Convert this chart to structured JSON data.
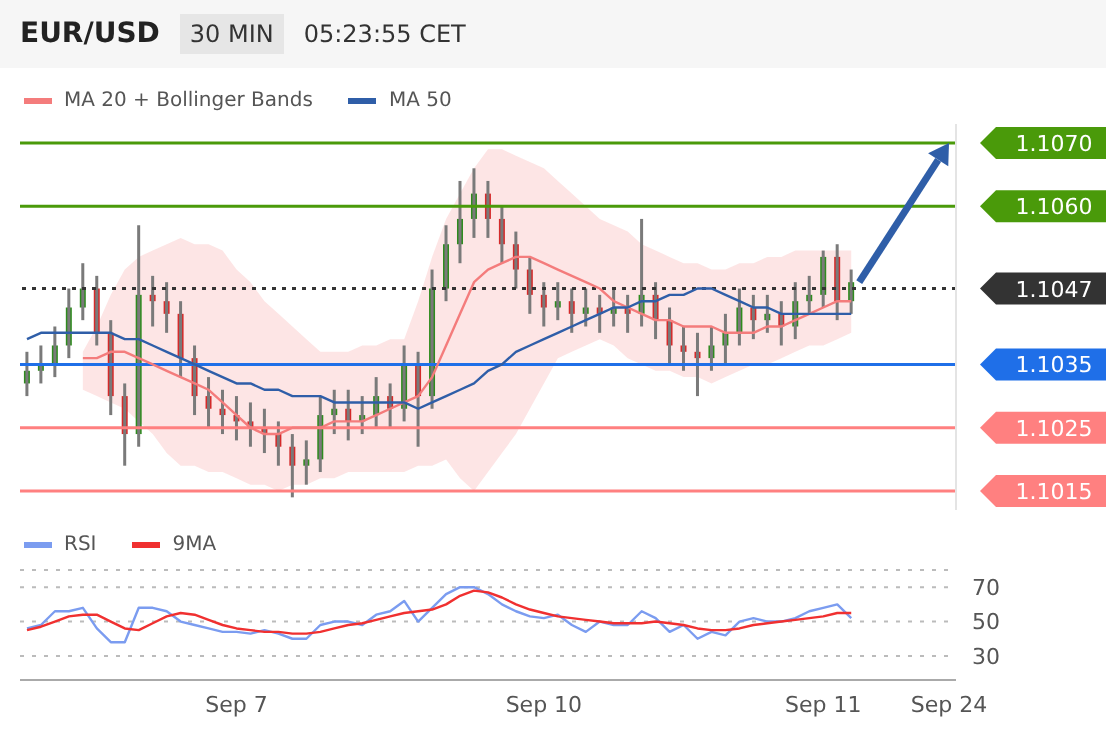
{
  "chart_data": [
    {
      "type": "candlestick",
      "title": "EUR/USD",
      "subtitle": "30 MIN",
      "annotations": [
        "05:23:55 CET"
      ],
      "categories": [
        null,
        null,
        null,
        null,
        null,
        null,
        null,
        null,
        null,
        null,
        null,
        null,
        null,
        null,
        null,
        null,
        null,
        null,
        null,
        null,
        null,
        null,
        null,
        null,
        null,
        null,
        null,
        null,
        null,
        null,
        null,
        null,
        null,
        null,
        null,
        null,
        null,
        null,
        null,
        null,
        null,
        null,
        null,
        null,
        null,
        null,
        null,
        null,
        null,
        null,
        null,
        null,
        null,
        null,
        null,
        null,
        null,
        null,
        null,
        null,
        null,
        null,
        null,
        null,
        null,
        null,
        null
      ],
      "ohlc": [
        [
          1.1032,
          1.1037,
          1.103,
          1.1034
        ],
        [
          1.1034,
          1.1038,
          1.1032,
          1.1035
        ],
        [
          1.1035,
          1.1041,
          1.1033,
          1.1038
        ],
        [
          1.1038,
          1.1047,
          1.1036,
          1.1044
        ],
        [
          1.1044,
          1.1051,
          1.1042,
          1.1047
        ],
        [
          1.1047,
          1.1049,
          1.1038,
          1.104
        ],
        [
          1.104,
          1.1042,
          1.1027,
          1.103
        ],
        [
          1.103,
          1.1032,
          1.1019,
          1.1024
        ],
        [
          1.1024,
          1.1057,
          1.1022,
          1.1046
        ],
        [
          1.1046,
          1.1049,
          1.1041,
          1.1045
        ],
        [
          1.1045,
          1.1048,
          1.104,
          1.1043
        ],
        [
          1.1043,
          1.1045,
          1.1033,
          1.1036
        ],
        [
          1.1036,
          1.1038,
          1.1027,
          1.103
        ],
        [
          1.103,
          1.1033,
          1.1025,
          1.1028
        ],
        [
          1.1028,
          1.1031,
          1.1024,
          1.1027
        ],
        [
          1.1027,
          1.103,
          1.1023,
          1.1026
        ],
        [
          1.1026,
          1.1029,
          1.1022,
          1.1025
        ],
        [
          1.1025,
          1.1028,
          1.1021,
          1.1024
        ],
        [
          1.1024,
          1.1026,
          1.1019,
          1.1022
        ],
        [
          1.1022,
          1.1024,
          1.1014,
          1.1019
        ],
        [
          1.1019,
          1.1023,
          1.1016,
          1.102
        ],
        [
          1.102,
          1.103,
          1.1018,
          1.1027
        ],
        [
          1.1027,
          1.1031,
          1.1024,
          1.1028
        ],
        [
          1.1028,
          1.1031,
          1.1023,
          1.1026
        ],
        [
          1.1026,
          1.103,
          1.1024,
          1.1027
        ],
        [
          1.1027,
          1.1033,
          1.1025,
          1.103
        ],
        [
          1.103,
          1.1032,
          1.1025,
          1.1028
        ],
        [
          1.1028,
          1.1038,
          1.1026,
          1.1035
        ],
        [
          1.1035,
          1.1037,
          1.1022,
          1.103
        ],
        [
          1.103,
          1.105,
          1.1028,
          1.1047
        ],
        [
          1.1047,
          1.1057,
          1.1045,
          1.1054
        ],
        [
          1.1054,
          1.1064,
          1.1051,
          1.1058
        ],
        [
          1.1058,
          1.1066,
          1.1055,
          1.1062
        ],
        [
          1.1062,
          1.1064,
          1.1055,
          1.1058
        ],
        [
          1.1058,
          1.106,
          1.1051,
          1.1054
        ],
        [
          1.1054,
          1.1056,
          1.1047,
          1.105
        ],
        [
          1.105,
          1.1052,
          1.1043,
          1.1046
        ],
        [
          1.1046,
          1.1048,
          1.1041,
          1.1044
        ],
        [
          1.1044,
          1.1048,
          1.1042,
          1.1045
        ],
        [
          1.1045,
          1.1047,
          1.104,
          1.1043
        ],
        [
          1.1043,
          1.1047,
          1.1041,
          1.1044
        ],
        [
          1.1044,
          1.1046,
          1.104,
          1.1043
        ],
        [
          1.1043,
          1.1047,
          1.1041,
          1.1044
        ],
        [
          1.1044,
          1.1046,
          1.104,
          1.1043
        ],
        [
          1.1043,
          1.1058,
          1.1041,
          1.1046
        ],
        [
          1.1046,
          1.1048,
          1.1039,
          1.1042
        ],
        [
          1.1042,
          1.1044,
          1.1035,
          1.1038
        ],
        [
          1.1038,
          1.1041,
          1.1034,
          1.1037
        ],
        [
          1.1037,
          1.104,
          1.103,
          1.1036
        ],
        [
          1.1036,
          1.1041,
          1.1034,
          1.1038
        ],
        [
          1.1038,
          1.1043,
          1.1035,
          1.104
        ],
        [
          1.104,
          1.1047,
          1.1038,
          1.1044
        ],
        [
          1.1044,
          1.1046,
          1.1039,
          1.1042
        ],
        [
          1.1042,
          1.1046,
          1.104,
          1.1043
        ],
        [
          1.1043,
          1.1045,
          1.1038,
          1.1041
        ],
        [
          1.1041,
          1.1048,
          1.1039,
          1.1045
        ],
        [
          1.1045,
          1.1049,
          1.1043,
          1.1046
        ],
        [
          1.1046,
          1.1053,
          1.1044,
          1.1052
        ],
        [
          1.1052,
          1.1054,
          1.1042,
          1.1045
        ],
        [
          1.1045,
          1.105,
          1.1043,
          1.1048
        ],
        null,
        null,
        null,
        null,
        null,
        null,
        null
      ],
      "series": [
        {
          "name": "MA 20 + Bollinger Bands",
          "type": "line",
          "color": "#f47c7c",
          "values": [
            null,
            null,
            null,
            null,
            1.1036,
            1.1036,
            1.1037,
            1.1037,
            1.1036,
            1.1035,
            1.1034,
            1.1033,
            1.1032,
            1.1031,
            1.1029,
            1.1027,
            1.1025,
            1.1024,
            1.1024,
            1.1025,
            1.1025,
            1.1025,
            1.1026,
            1.1026,
            1.1026,
            1.1027,
            1.1028,
            1.1029,
            1.103,
            1.1033,
            1.1038,
            1.1043,
            1.1048,
            1.105,
            1.1051,
            1.1052,
            1.1052,
            1.1051,
            1.105,
            1.1049,
            1.1048,
            1.1047,
            1.1045,
            1.1044,
            1.1043,
            1.1042,
            1.1042,
            1.1041,
            1.1041,
            1.1041,
            1.104,
            1.104,
            1.104,
            1.1041,
            1.1041,
            1.1042,
            1.1043,
            1.1044,
            1.1045,
            1.1045,
            null,
            null,
            null,
            null,
            null,
            null,
            null
          ],
          "upper": [
            null,
            null,
            null,
            null,
            1.1037,
            1.1041,
            1.1046,
            1.105,
            1.1052,
            1.1053,
            1.1054,
            1.1055,
            1.1054,
            1.1054,
            1.1053,
            1.105,
            1.1048,
            1.1045,
            1.1043,
            1.1041,
            1.1039,
            1.1037,
            1.1037,
            1.1037,
            1.1038,
            1.1038,
            1.1039,
            1.1039,
            1.1045,
            1.1052,
            1.1058,
            1.1062,
            1.1066,
            1.1069,
            1.1069,
            1.1068,
            1.1067,
            1.1066,
            1.1064,
            1.1062,
            1.106,
            1.1058,
            1.1057,
            1.1056,
            1.1054,
            1.1053,
            1.1052,
            1.1051,
            1.1051,
            1.105,
            1.105,
            1.1051,
            1.1051,
            1.1052,
            1.1052,
            1.1053,
            1.1053,
            1.1053,
            1.1053,
            1.1053,
            null,
            null,
            null,
            null,
            null,
            null,
            null
          ],
          "lower": [
            null,
            null,
            null,
            null,
            1.1031,
            1.103,
            1.1029,
            1.1028,
            1.1026,
            1.1024,
            1.1021,
            1.1019,
            1.1019,
            1.1018,
            1.1018,
            1.1017,
            1.1016,
            1.1016,
            1.1015,
            1.1016,
            1.1016,
            1.1017,
            1.1017,
            1.1018,
            1.1018,
            1.1018,
            1.1018,
            1.1018,
            1.1019,
            1.1019,
            1.102,
            1.1017,
            1.1015,
            1.1018,
            1.1021,
            1.1024,
            1.1028,
            1.1032,
            1.1036,
            1.1037,
            1.1038,
            1.1039,
            1.1038,
            1.1036,
            1.1035,
            1.1034,
            1.1034,
            1.1033,
            1.1033,
            1.1032,
            1.1033,
            1.1034,
            1.1035,
            1.1035,
            1.1036,
            1.1037,
            1.1038,
            1.1038,
            1.1039,
            1.104,
            null,
            null,
            null,
            null,
            null,
            null,
            null
          ]
        },
        {
          "name": "MA 50",
          "type": "line",
          "color": "#2f5ea8",
          "values": [
            1.1039,
            1.104,
            1.104,
            1.104,
            1.104,
            1.104,
            1.104,
            1.1039,
            1.1039,
            1.1038,
            1.1037,
            1.1036,
            1.1035,
            1.1034,
            1.1033,
            1.1032,
            1.1032,
            1.1031,
            1.1031,
            1.103,
            1.103,
            1.103,
            1.1029,
            1.1029,
            1.1029,
            1.1029,
            1.1029,
            1.1029,
            1.1028,
            1.1029,
            1.103,
            1.1031,
            1.1032,
            1.1034,
            1.1035,
            1.1037,
            1.1038,
            1.1039,
            1.104,
            1.1041,
            1.1042,
            1.1043,
            1.1044,
            1.1044,
            1.1045,
            1.1045,
            1.1046,
            1.1046,
            1.1047,
            1.1047,
            1.1046,
            1.1045,
            1.1044,
            1.1044,
            1.1043,
            1.1043,
            1.1043,
            1.1043,
            1.1043,
            1.1043,
            null,
            null,
            null,
            null,
            null,
            null,
            null
          ]
        }
      ],
      "ylim": [
        1.1012,
        1.1073
      ],
      "yticks": [
        {
          "value": 1.1015,
          "label": "1.1015"
        },
        {
          "value": 1.1025,
          "label": "1.1025"
        },
        {
          "value": 1.1035,
          "label": "1.1035"
        },
        {
          "value": 1.1047,
          "label": "1.1047"
        },
        {
          "value": 1.106,
          "label": "1.1060"
        },
        {
          "value": 1.107,
          "label": "1.1070"
        }
      ],
      "ref_lines": [
        {
          "axis": "y",
          "value": 1.107,
          "color": "#4a9a0a",
          "line_style": "solid"
        },
        {
          "axis": "y",
          "value": 1.106,
          "color": "#4a9a0a",
          "line_style": "solid"
        },
        {
          "axis": "y",
          "value": 1.1047,
          "color": "#333333",
          "line_style": "dotted"
        },
        {
          "axis": "y",
          "value": 1.1035,
          "color": "#1f6fe8",
          "line_style": "solid"
        },
        {
          "axis": "y",
          "value": 1.1025,
          "color": "#ff8080",
          "line_style": "solid"
        },
        {
          "axis": "y",
          "value": 1.1015,
          "color": "#ff8080",
          "line_style": "solid"
        }
      ],
      "legend": "top left",
      "tick_labels": "y"
    },
    {
      "type": "line",
      "categories": [
        null,
        null,
        null,
        null,
        null,
        null,
        null,
        null,
        null,
        null,
        null,
        null,
        null,
        null,
        null,
        "Sep 7",
        null,
        null,
        null,
        null,
        null,
        null,
        null,
        null,
        null,
        null,
        null,
        null,
        null,
        null,
        null,
        null,
        null,
        null,
        null,
        null,
        null,
        "Sep 10",
        null,
        null,
        null,
        null,
        null,
        null,
        null,
        null,
        null,
        null,
        null,
        null,
        null,
        null,
        null,
        null,
        null,
        null,
        null,
        "Sep 11",
        null,
        null,
        null,
        null,
        null,
        null,
        null,
        null,
        "Sep 24"
      ],
      "series": [
        {
          "name": "RSI",
          "color": "#7b9cf0",
          "values": [
            46,
            48,
            56,
            56,
            58,
            46,
            38,
            38,
            58,
            58,
            56,
            50,
            48,
            46,
            44,
            44,
            43,
            45,
            43,
            40,
            40,
            48,
            50,
            50,
            48,
            54,
            56,
            62,
            50,
            58,
            66,
            70,
            70,
            66,
            60,
            56,
            53,
            52,
            54,
            48,
            44,
            50,
            48,
            48,
            56,
            52,
            44,
            48,
            40,
            44,
            42,
            50,
            52,
            50,
            50,
            52,
            56,
            58,
            60,
            52,
            null,
            null,
            null,
            null,
            null,
            null,
            null
          ]
        },
        {
          "name": "9MA",
          "color": "#f03030",
          "values": [
            45,
            47,
            50,
            53,
            54,
            54,
            50,
            46,
            45,
            49,
            53,
            55,
            54,
            51,
            48,
            46,
            45,
            44,
            44,
            43,
            43,
            44,
            46,
            48,
            49,
            51,
            53,
            55,
            56,
            57,
            60,
            65,
            68,
            67,
            64,
            60,
            57,
            55,
            53,
            52,
            51,
            50,
            49,
            49,
            49,
            50,
            49,
            48,
            46,
            45,
            45,
            46,
            48,
            49,
            50,
            51,
            52,
            53,
            55,
            55,
            null,
            null,
            null,
            null,
            null,
            null,
            null
          ]
        }
      ],
      "ylim": [
        16,
        80
      ],
      "yticks": [
        30,
        50,
        70
      ],
      "grid": "y",
      "legend": "top left",
      "marker": "none"
    }
  ]
}
